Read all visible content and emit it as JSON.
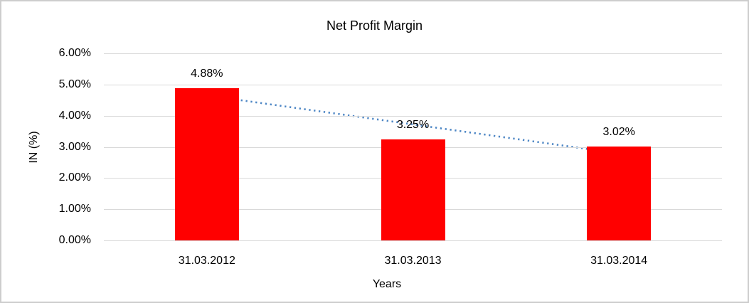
{
  "chart_data": {
    "type": "bar",
    "title": "Net Profit Margin",
    "xlabel": "Years",
    "ylabel": "IN (%)",
    "categories": [
      "31.03.2012",
      "31.03.2013",
      "31.03.2014"
    ],
    "values": [
      4.88,
      3.25,
      3.02
    ],
    "data_labels": [
      "4.88%",
      "3.25%",
      "3.02%"
    ],
    "ylim": [
      0,
      6
    ],
    "ytick_step": 1,
    "ytick_labels": [
      "0.00%",
      "1.00%",
      "2.00%",
      "3.00%",
      "4.00%",
      "5.00%",
      "6.00%"
    ],
    "grid": true,
    "legend": false,
    "bar_color": "#ff0000",
    "gridline_color": "#d9d9d9",
    "text_color": "#000000",
    "trendline": {
      "type": "linear",
      "style": "dotted",
      "color": "#4e87c5",
      "start_value": 4.65,
      "end_value": 2.79
    }
  }
}
